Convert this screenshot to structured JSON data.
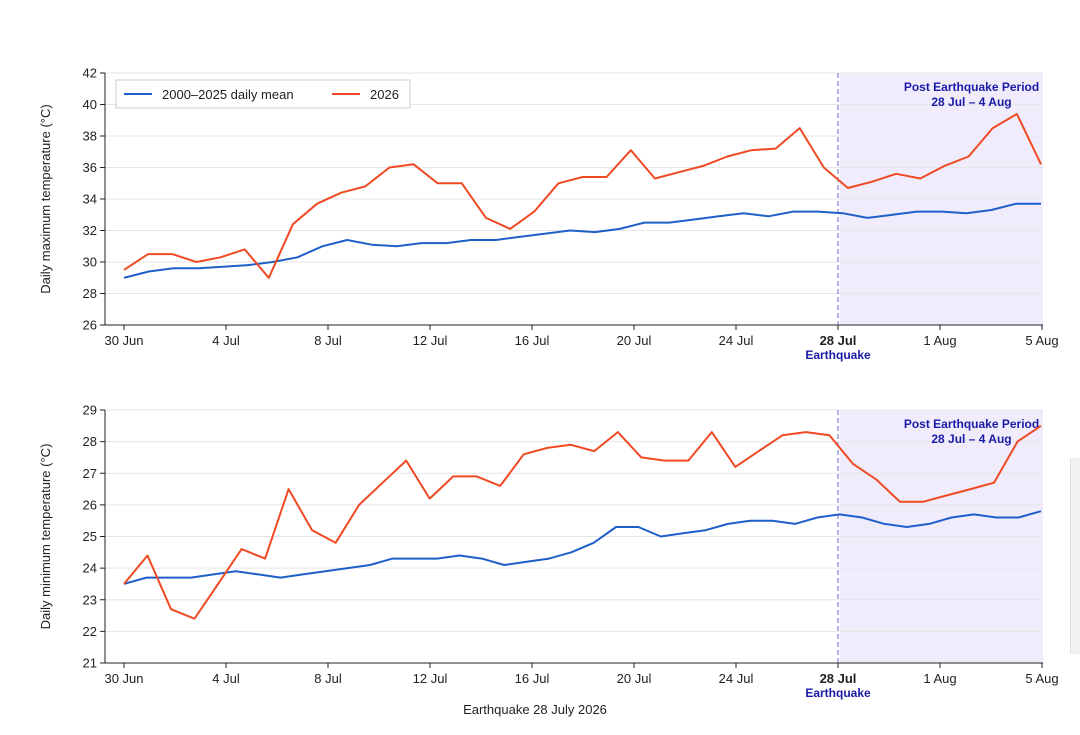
{
  "caption": "Earthquake 28 July 2026",
  "colors": {
    "mean": "#1f5fc9",
    "year": "#ef4a23",
    "shade": "#f1ecfb",
    "event_line": "#6a6ad0",
    "annotation": "#1a1aa6",
    "grid": "#e6e6e6"
  },
  "chart_data": [
    {
      "type": "line",
      "ylabel": "Daily maximum temperature (°C)",
      "xlabel": "",
      "ylim": [
        26,
        42
      ],
      "yticks": [
        26,
        28,
        30,
        32,
        34,
        36,
        38,
        40,
        42
      ],
      "x_start": "30 Jun",
      "x_end": "5 Aug",
      "xticks": [
        {
          "label": "30 Jun",
          "day": 0
        },
        {
          "label": "4 Jul",
          "day": 4
        },
        {
          "label": "8 Jul",
          "day": 8
        },
        {
          "label": "12 Jul",
          "day": 12
        },
        {
          "label": "16 Jul",
          "day": 16
        },
        {
          "label": "20 Jul",
          "day": 20
        },
        {
          "label": "24 Jul",
          "day": 24
        },
        {
          "label": "28 Jul",
          "day": 28,
          "highlight": true,
          "sub": "Earthquake"
        },
        {
          "label": "1 Aug",
          "day": 32
        },
        {
          "label": "5 Aug",
          "day": 36
        }
      ],
      "event_day": 28,
      "shaded_region": {
        "title": "Post Earthquake Period",
        "subtitle": "28 Jul – 4 Aug"
      },
      "legend": {
        "position": "top-left",
        "entries": [
          "2000–2025 daily mean",
          "2026"
        ]
      },
      "grid": true,
      "series": [
        {
          "name": "2000–2025 daily mean",
          "values": [
            29.0,
            29.4,
            29.6,
            29.6,
            29.7,
            29.8,
            30.0,
            30.3,
            31.0,
            31.4,
            31.1,
            31.0,
            31.2,
            31.2,
            31.4,
            31.4,
            31.6,
            31.8,
            32.0,
            31.9,
            32.1,
            32.5,
            32.5,
            32.7,
            32.9,
            33.1,
            32.9,
            33.2,
            33.2,
            33.1,
            32.8,
            33.0,
            33.2,
            33.2,
            33.1,
            33.3,
            33.7,
            33.7
          ]
        },
        {
          "name": "2026",
          "values": [
            29.5,
            30.5,
            30.5,
            30.0,
            30.3,
            30.8,
            29.0,
            32.4,
            33.7,
            34.4,
            34.8,
            36.0,
            36.2,
            35.0,
            35.0,
            32.8,
            32.1,
            33.2,
            35.0,
            35.4,
            35.4,
            37.1,
            35.3,
            35.7,
            36.1,
            36.7,
            37.1,
            37.2,
            38.5,
            36.0,
            34.7,
            35.1,
            35.6,
            35.3,
            36.1,
            36.7,
            38.5,
            39.4,
            36.2
          ]
        }
      ],
      "x_step": 0.95
    },
    {
      "type": "line",
      "ylabel": "Daily minimum temperature (°C)",
      "xlabel": "",
      "ylim": [
        21,
        29
      ],
      "yticks": [
        21,
        22,
        23,
        24,
        25,
        26,
        27,
        28,
        29
      ],
      "x_start": "30 Jun",
      "x_end": "5 Aug",
      "xticks": [
        {
          "label": "30 Jun",
          "day": 0
        },
        {
          "label": "4 Jul",
          "day": 4
        },
        {
          "label": "8 Jul",
          "day": 8
        },
        {
          "label": "12 Jul",
          "day": 12
        },
        {
          "label": "16 Jul",
          "day": 16
        },
        {
          "label": "20 Jul",
          "day": 20
        },
        {
          "label": "24 Jul",
          "day": 24
        },
        {
          "label": "28 Jul",
          "day": 28,
          "highlight": true,
          "sub": "Earthquake"
        },
        {
          "label": "1 Aug",
          "day": 32
        },
        {
          "label": "5 Aug",
          "day": 36
        }
      ],
      "event_day": 28,
      "shaded_region": {
        "title": "Post Earthquake Period",
        "subtitle": "28 Jul – 4 Aug"
      },
      "grid": true,
      "series": [
        {
          "name": "2000–2025 daily mean",
          "values": [
            23.5,
            23.7,
            23.7,
            23.7,
            23.8,
            23.9,
            23.8,
            23.7,
            23.8,
            23.9,
            24.0,
            24.1,
            24.3,
            24.3,
            24.3,
            24.4,
            24.3,
            24.1,
            24.2,
            24.3,
            24.5,
            24.8,
            25.3,
            25.3,
            25.0,
            25.1,
            25.2,
            25.4,
            25.5,
            25.5,
            25.4,
            25.6,
            25.7,
            25.6,
            25.4,
            25.3,
            25.4,
            25.6,
            25.7,
            25.6,
            25.6,
            25.8
          ]
        },
        {
          "name": "2026",
          "values": [
            23.5,
            24.4,
            22.7,
            22.4,
            23.5,
            24.6,
            24.3,
            26.5,
            25.2,
            24.8,
            26.0,
            26.7,
            27.4,
            26.2,
            26.9,
            26.9,
            26.6,
            27.6,
            27.8,
            27.9,
            27.7,
            28.3,
            27.5,
            27.4,
            27.4,
            28.3,
            27.2,
            27.7,
            28.2,
            28.3,
            28.2,
            27.3,
            26.8,
            26.1,
            26.1,
            26.3,
            26.5,
            26.7,
            28.0,
            28.5
          ]
        }
      ],
      "x_step": 0.9
    }
  ]
}
